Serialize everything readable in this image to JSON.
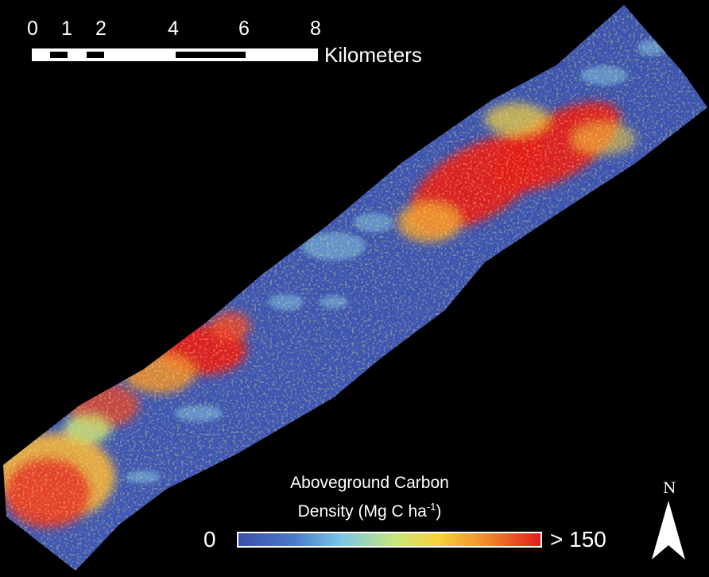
{
  "map": {
    "scale_bar": {
      "ticks": [
        "0",
        "1",
        "2",
        "4",
        "6",
        "8"
      ],
      "units": "Kilometers"
    },
    "legend": {
      "title_line1": "Aboveground Carbon",
      "title_line2_prefix": "Density (Mg C ha",
      "title_line2_sup": "-1",
      "title_line2_suffix": ")",
      "min_label": "0",
      "max_label": "> 150",
      "colors": [
        "#3a50a8",
        "#4a78c8",
        "#79c6e8",
        "#c8e67a",
        "#f6d33c",
        "#f08a2c",
        "#e21e1e"
      ]
    },
    "north_label": "N",
    "colors": {
      "background": "#000000",
      "low": "#3d55b0",
      "high": "#e41a1c"
    }
  }
}
